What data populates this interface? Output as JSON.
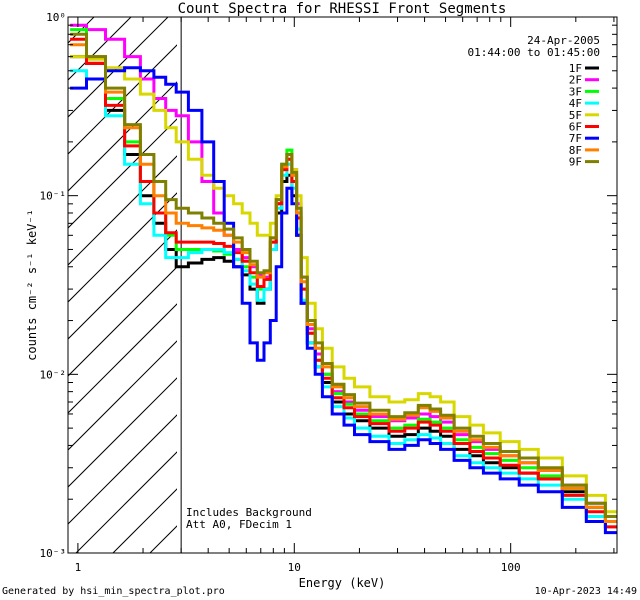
{
  "chart_data": {
    "type": "line",
    "title": "Count Spectra for RHESSI Front Segments",
    "xlabel": "Energy (keV)",
    "ylabel": "counts cm⁻² s⁻¹ keV⁻¹",
    "xscale": "log",
    "yscale": "log",
    "xlim": [
      0.9,
      310
    ],
    "ylim": [
      0.001,
      1
    ],
    "x_ticks": [
      {
        "value": 1,
        "label": "1"
      },
      {
        "value": 10,
        "label": "10"
      },
      {
        "value": 100,
        "label": "100"
      }
    ],
    "y_ticks": [
      {
        "value": 1,
        "label": "10⁰"
      },
      {
        "value": 0.1,
        "label": "10⁻¹"
      },
      {
        "value": 0.01,
        "label": "10⁻²"
      },
      {
        "value": 0.001,
        "label": "10⁻³"
      }
    ],
    "shaded_region": {
      "x_min": 0.9,
      "x_max": 3,
      "style": "hatched"
    },
    "date": "24-Apr-2005",
    "time_range": "01:44:00 to 01:45:00",
    "annotations": [
      "Includes Background",
      "Att A0, FDecim 1"
    ],
    "x": [
      1.0,
      1.2,
      1.5,
      1.8,
      2.1,
      2.4,
      2.7,
      3.0,
      3.5,
      4.0,
      4.5,
      5.0,
      5.5,
      6.0,
      6.5,
      7.0,
      7.5,
      8.0,
      8.5,
      9.0,
      9.5,
      10.0,
      10.5,
      11.0,
      12.0,
      13.0,
      14.0,
      16.0,
      18.0,
      20.0,
      25.0,
      30.0,
      35.0,
      40.0,
      45.0,
      50.0,
      60.0,
      70.0,
      80.0,
      100.0,
      120.0,
      150.0,
      200.0,
      250.0,
      300.0
    ],
    "series": [
      {
        "name": "1F",
        "color": "#000000",
        "values": [
          0.6,
          0.55,
          0.3,
          0.17,
          0.1,
          0.07,
          0.05,
          0.04,
          0.042,
          0.044,
          0.045,
          0.043,
          0.04,
          0.036,
          0.03,
          0.025,
          0.03,
          0.05,
          0.08,
          0.12,
          0.13,
          0.1,
          0.06,
          0.025,
          0.015,
          0.011,
          0.009,
          0.007,
          0.006,
          0.0055,
          0.005,
          0.0045,
          0.0046,
          0.005,
          0.0048,
          0.0045,
          0.0038,
          0.0035,
          0.0032,
          0.003,
          0.0028,
          0.0026,
          0.0022,
          0.0018,
          0.0015
        ]
      },
      {
        "name": "2F",
        "color": "#ff00ff",
        "values": [
          0.9,
          0.85,
          0.75,
          0.6,
          0.45,
          0.35,
          0.3,
          0.28,
          0.2,
          0.12,
          0.08,
          0.06,
          0.05,
          0.045,
          0.04,
          0.036,
          0.035,
          0.05,
          0.09,
          0.14,
          0.17,
          0.14,
          0.09,
          0.035,
          0.018,
          0.013,
          0.01,
          0.008,
          0.007,
          0.0063,
          0.0058,
          0.0055,
          0.0057,
          0.006,
          0.0058,
          0.0054,
          0.0046,
          0.0042,
          0.0038,
          0.0035,
          0.0032,
          0.0029,
          0.0024,
          0.0019,
          0.0016
        ]
      },
      {
        "name": "3F",
        "color": "#00ff00",
        "values": [
          0.85,
          0.6,
          0.35,
          0.2,
          0.12,
          0.08,
          0.06,
          0.05,
          0.05,
          0.05,
          0.049,
          0.047,
          0.044,
          0.04,
          0.035,
          0.03,
          0.034,
          0.055,
          0.09,
          0.15,
          0.18,
          0.13,
          0.08,
          0.03,
          0.017,
          0.012,
          0.01,
          0.0078,
          0.0068,
          0.006,
          0.0055,
          0.005,
          0.0052,
          0.0056,
          0.0054,
          0.005,
          0.0043,
          0.0039,
          0.0036,
          0.0033,
          0.003,
          0.0027,
          0.0023,
          0.0018,
          0.0015
        ]
      },
      {
        "name": "4F",
        "color": "#00ffff",
        "values": [
          0.5,
          0.45,
          0.28,
          0.15,
          0.09,
          0.06,
          0.045,
          0.045,
          0.048,
          0.05,
          0.05,
          0.048,
          0.044,
          0.038,
          0.032,
          0.026,
          0.03,
          0.05,
          0.085,
          0.13,
          0.15,
          0.11,
          0.065,
          0.026,
          0.015,
          0.011,
          0.0085,
          0.0066,
          0.0057,
          0.005,
          0.0045,
          0.0041,
          0.0043,
          0.0046,
          0.0044,
          0.0041,
          0.0035,
          0.0032,
          0.003,
          0.0028,
          0.0026,
          0.0024,
          0.002,
          0.0016,
          0.0014
        ]
      },
      {
        "name": "5F",
        "color": "#d8d800",
        "values": [
          0.6,
          0.58,
          0.52,
          0.45,
          0.37,
          0.3,
          0.24,
          0.2,
          0.16,
          0.13,
          0.11,
          0.1,
          0.09,
          0.08,
          0.07,
          0.06,
          0.06,
          0.07,
          0.1,
          0.14,
          0.16,
          0.14,
          0.1,
          0.045,
          0.025,
          0.018,
          0.014,
          0.011,
          0.0095,
          0.0085,
          0.0075,
          0.007,
          0.0072,
          0.0078,
          0.0075,
          0.007,
          0.0058,
          0.0052,
          0.0047,
          0.0042,
          0.0038,
          0.0034,
          0.0027,
          0.0021,
          0.0017
        ]
      },
      {
        "name": "6F",
        "color": "#ff0000",
        "values": [
          0.75,
          0.55,
          0.32,
          0.19,
          0.12,
          0.08,
          0.062,
          0.055,
          0.055,
          0.055,
          0.054,
          0.052,
          0.048,
          0.043,
          0.037,
          0.031,
          0.034,
          0.055,
          0.09,
          0.14,
          0.16,
          0.12,
          0.075,
          0.03,
          0.017,
          0.012,
          0.0095,
          0.0074,
          0.0065,
          0.0058,
          0.0053,
          0.0048,
          0.005,
          0.0054,
          0.0052,
          0.0048,
          0.0041,
          0.0037,
          0.0034,
          0.0031,
          0.0028,
          0.0026,
          0.0021,
          0.0017,
          0.0014
        ]
      },
      {
        "name": "7F",
        "color": "#0000ff",
        "values": [
          0.4,
          0.45,
          0.5,
          0.52,
          0.5,
          0.46,
          0.42,
          0.38,
          0.3,
          0.2,
          0.12,
          0.07,
          0.04,
          0.025,
          0.015,
          0.012,
          0.015,
          0.02,
          0.04,
          0.08,
          0.11,
          0.09,
          0.06,
          0.025,
          0.014,
          0.01,
          0.0075,
          0.006,
          0.0052,
          0.0046,
          0.0042,
          0.0038,
          0.004,
          0.0043,
          0.0041,
          0.0038,
          0.0033,
          0.003,
          0.0028,
          0.0026,
          0.0024,
          0.0022,
          0.0018,
          0.0015,
          0.0013
        ]
      },
      {
        "name": "8F",
        "color": "#ff8000",
        "values": [
          0.7,
          0.6,
          0.38,
          0.24,
          0.15,
          0.1,
          0.08,
          0.07,
          0.068,
          0.066,
          0.064,
          0.06,
          0.055,
          0.048,
          0.041,
          0.035,
          0.037,
          0.058,
          0.095,
          0.145,
          0.17,
          0.13,
          0.08,
          0.033,
          0.019,
          0.014,
          0.011,
          0.0085,
          0.0074,
          0.0066,
          0.006,
          0.0056,
          0.0059,
          0.0065,
          0.0062,
          0.0057,
          0.0048,
          0.0043,
          0.0039,
          0.0035,
          0.0032,
          0.0029,
          0.0023,
          0.0018,
          0.0015
        ]
      },
      {
        "name": "9F",
        "color": "#808000",
        "values": [
          0.8,
          0.6,
          0.4,
          0.25,
          0.17,
          0.12,
          0.095,
          0.085,
          0.08,
          0.075,
          0.07,
          0.065,
          0.058,
          0.05,
          0.043,
          0.037,
          0.038,
          0.058,
          0.095,
          0.15,
          0.17,
          0.135,
          0.085,
          0.035,
          0.02,
          0.015,
          0.0115,
          0.0088,
          0.0077,
          0.0069,
          0.0063,
          0.0058,
          0.0061,
          0.0067,
          0.0064,
          0.0059,
          0.005,
          0.0045,
          0.0041,
          0.0037,
          0.0034,
          0.003,
          0.0024,
          0.0019,
          0.0016
        ]
      }
    ]
  },
  "footer": {
    "generated_by": "Generated by hsi_min_spectra_plot.pro",
    "timestamp": "10-Apr-2023 14:49"
  }
}
